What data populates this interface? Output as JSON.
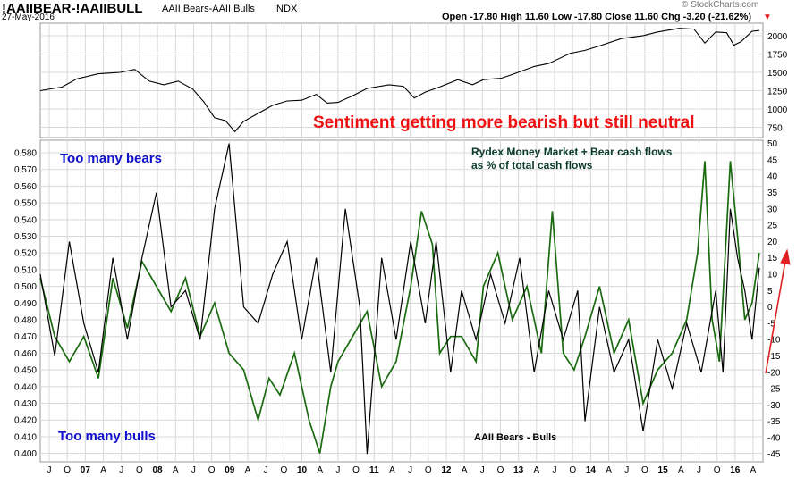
{
  "header": {
    "symbol": "!AAIIBEAR-!AAIIBULL",
    "description": "AAII Bears-AAII Bulls",
    "exchange": "INDX",
    "date": "27-May-2016",
    "ohlc_text": "Open -17.80  High 11.60  Low -17.80  Close 11.60  Chg -3.20 (-21.62%)",
    "down_arrow": "▼",
    "watermark": "© StockCharts.com"
  },
  "annotations": {
    "headline": "Sentiment getting more bearish but still neutral",
    "too_many_bears": "Too many bears",
    "too_many_bulls": "Too many bulls",
    "rydex_label_line1": "Rydex Money Market + Bear cash flows",
    "rydex_label_line2": "as % of total cash flows",
    "aaii_label": "AAII Bears - Bulls"
  },
  "colors": {
    "headline": "#ee1111",
    "blue_text": "#1010cc",
    "rydex_label": "#0a3a28",
    "green_series": "#1a6b10",
    "black_series": "#000000",
    "arrow": "#e02020",
    "grid": "#d8d8d8"
  },
  "chart_data": [
    {
      "type": "line",
      "name": "upper-panel",
      "y_ticks": [
        750,
        1000,
        1250,
        1500,
        1750,
        2000
      ],
      "ylim": [
        610,
        2170
      ],
      "series": [
        {
          "name": "",
          "points": [
            [
              2006.5,
              1250
            ],
            [
              2006.8,
              1300
            ],
            [
              2007.0,
              1410
            ],
            [
              2007.3,
              1480
            ],
            [
              2007.6,
              1500
            ],
            [
              2007.8,
              1540
            ],
            [
              2008.0,
              1380
            ],
            [
              2008.2,
              1330
            ],
            [
              2008.4,
              1380
            ],
            [
              2008.6,
              1270
            ],
            [
              2008.75,
              1100
            ],
            [
              2008.9,
              880
            ],
            [
              2009.05,
              840
            ],
            [
              2009.18,
              690
            ],
            [
              2009.3,
              830
            ],
            [
              2009.5,
              940
            ],
            [
              2009.7,
              1050
            ],
            [
              2009.9,
              1110
            ],
            [
              2010.1,
              1120
            ],
            [
              2010.3,
              1200
            ],
            [
              2010.45,
              1080
            ],
            [
              2010.6,
              1090
            ],
            [
              2010.8,
              1180
            ],
            [
              2011.0,
              1280
            ],
            [
              2011.3,
              1330
            ],
            [
              2011.5,
              1310
            ],
            [
              2011.65,
              1150
            ],
            [
              2011.8,
              1230
            ],
            [
              2012.0,
              1300
            ],
            [
              2012.25,
              1400
            ],
            [
              2012.45,
              1330
            ],
            [
              2012.6,
              1400
            ],
            [
              2012.85,
              1420
            ],
            [
              2013.0,
              1470
            ],
            [
              2013.3,
              1580
            ],
            [
              2013.5,
              1620
            ],
            [
              2013.8,
              1760
            ],
            [
              2014.0,
              1800
            ],
            [
              2014.2,
              1860
            ],
            [
              2014.5,
              1960
            ],
            [
              2014.8,
              2000
            ],
            [
              2015.0,
              2050
            ],
            [
              2015.3,
              2100
            ],
            [
              2015.5,
              2090
            ],
            [
              2015.65,
              1900
            ],
            [
              2015.8,
              2050
            ],
            [
              2015.95,
              2040
            ],
            [
              2016.05,
              1870
            ],
            [
              2016.15,
              1920
            ],
            [
              2016.3,
              2060
            ],
            [
              2016.4,
              2070
            ]
          ]
        }
      ]
    },
    {
      "type": "line",
      "name": "lower-panel",
      "x_tick_labels": [
        "J",
        "O",
        "07",
        "A",
        "J",
        "O",
        "08",
        "A",
        "J",
        "O",
        "09",
        "A",
        "J",
        "O",
        "10",
        "A",
        "J",
        "O",
        "11",
        "A",
        "J",
        "O",
        "12",
        "A",
        "J",
        "O",
        "13",
        "A",
        "J",
        "O",
        "14",
        "A",
        "J",
        "O",
        "15",
        "A",
        "J",
        "O",
        "16",
        "A"
      ],
      "left_axis": {
        "ylim": [
          0.395,
          0.5875
        ],
        "ticks": [
          0.4,
          0.41,
          0.42,
          0.43,
          0.44,
          0.45,
          0.46,
          0.47,
          0.48,
          0.49,
          0.5,
          0.51,
          0.52,
          0.53,
          0.54,
          0.55,
          0.56,
          0.57,
          0.58
        ]
      },
      "right_axis": {
        "ylim": [
          -47.4,
          51.0
        ],
        "ticks": [
          -45,
          -40,
          -35,
          -30,
          -25,
          -20,
          -15,
          -10,
          -5,
          0,
          5,
          10,
          15,
          20,
          25,
          30,
          35,
          40,
          45,
          50
        ]
      },
      "series": [
        {
          "name": "Rydex Money Market + Bear cash flows as % of total cash flows",
          "axis": "left",
          "points": [
            [
              2006.5,
              0.505
            ],
            [
              2006.7,
              0.47
            ],
            [
              2006.9,
              0.455
            ],
            [
              2007.1,
              0.47
            ],
            [
              2007.3,
              0.445
            ],
            [
              2007.5,
              0.505
            ],
            [
              2007.7,
              0.475
            ],
            [
              2007.9,
              0.515
            ],
            [
              2008.1,
              0.5
            ],
            [
              2008.3,
              0.485
            ],
            [
              2008.5,
              0.505
            ],
            [
              2008.7,
              0.47
            ],
            [
              2008.9,
              0.49
            ],
            [
              2009.1,
              0.46
            ],
            [
              2009.3,
              0.45
            ],
            [
              2009.5,
              0.42
            ],
            [
              2009.65,
              0.445
            ],
            [
              2009.8,
              0.435
            ],
            [
              2010.0,
              0.46
            ],
            [
              2010.2,
              0.42
            ],
            [
              2010.35,
              0.4
            ],
            [
              2010.5,
              0.44
            ],
            [
              2010.6,
              0.455
            ],
            [
              2010.8,
              0.47
            ],
            [
              2011.0,
              0.485
            ],
            [
              2011.2,
              0.44
            ],
            [
              2011.4,
              0.455
            ],
            [
              2011.6,
              0.5
            ],
            [
              2011.75,
              0.545
            ],
            [
              2011.9,
              0.525
            ],
            [
              2012.0,
              0.46
            ],
            [
              2012.15,
              0.47
            ],
            [
              2012.3,
              0.47
            ],
            [
              2012.5,
              0.455
            ],
            [
              2012.6,
              0.5
            ],
            [
              2012.8,
              0.52
            ],
            [
              2013.0,
              0.48
            ],
            [
              2013.2,
              0.5
            ],
            [
              2013.4,
              0.46
            ],
            [
              2013.55,
              0.545
            ],
            [
              2013.7,
              0.46
            ],
            [
              2013.85,
              0.45
            ],
            [
              2014.0,
              0.47
            ],
            [
              2014.2,
              0.5
            ],
            [
              2014.4,
              0.46
            ],
            [
              2014.6,
              0.48
            ],
            [
              2014.8,
              0.43
            ],
            [
              2015.0,
              0.45
            ],
            [
              2015.2,
              0.46
            ],
            [
              2015.4,
              0.48
            ],
            [
              2015.55,
              0.52
            ],
            [
              2015.65,
              0.575
            ],
            [
              2015.75,
              0.48
            ],
            [
              2015.85,
              0.455
            ],
            [
              2016.0,
              0.575
            ],
            [
              2016.1,
              0.53
            ],
            [
              2016.2,
              0.48
            ],
            [
              2016.3,
              0.49
            ],
            [
              2016.4,
              0.52
            ]
          ]
        },
        {
          "name": "AAII Bears - Bulls",
          "axis": "right",
          "points": [
            [
              2006.5,
              10
            ],
            [
              2006.7,
              -15
            ],
            [
              2006.9,
              20
            ],
            [
              2007.1,
              -5
            ],
            [
              2007.3,
              -20
            ],
            [
              2007.5,
              15
            ],
            [
              2007.7,
              -10
            ],
            [
              2007.9,
              15
            ],
            [
              2008.1,
              35
            ],
            [
              2008.3,
              0
            ],
            [
              2008.5,
              5
            ],
            [
              2008.7,
              -10
            ],
            [
              2008.9,
              30
            ],
            [
              2009.1,
              50
            ],
            [
              2009.3,
              0
            ],
            [
              2009.5,
              -5
            ],
            [
              2009.7,
              10
            ],
            [
              2009.9,
              20
            ],
            [
              2010.1,
              -10
            ],
            [
              2010.3,
              15
            ],
            [
              2010.5,
              -20
            ],
            [
              2010.7,
              30
            ],
            [
              2010.9,
              0
            ],
            [
              2011.0,
              -45
            ],
            [
              2011.2,
              15
            ],
            [
              2011.4,
              -10
            ],
            [
              2011.6,
              20
            ],
            [
              2011.8,
              -5
            ],
            [
              2011.95,
              20
            ],
            [
              2012.15,
              -20
            ],
            [
              2012.3,
              5
            ],
            [
              2012.5,
              -10
            ],
            [
              2012.7,
              10
            ],
            [
              2012.9,
              -5
            ],
            [
              2013.1,
              15
            ],
            [
              2013.3,
              -20
            ],
            [
              2013.5,
              5
            ],
            [
              2013.7,
              -10
            ],
            [
              2013.9,
              5
            ],
            [
              2014.0,
              -35
            ],
            [
              2014.2,
              0
            ],
            [
              2014.4,
              -20
            ],
            [
              2014.6,
              -10
            ],
            [
              2014.8,
              -38
            ],
            [
              2015.0,
              -10
            ],
            [
              2015.2,
              -25
            ],
            [
              2015.4,
              -5
            ],
            [
              2015.6,
              -20
            ],
            [
              2015.8,
              5
            ],
            [
              2015.9,
              -20
            ],
            [
              2016.0,
              30
            ],
            [
              2016.1,
              15
            ],
            [
              2016.2,
              5
            ],
            [
              2016.3,
              -10
            ],
            [
              2016.4,
              12
            ]
          ]
        }
      ]
    }
  ]
}
